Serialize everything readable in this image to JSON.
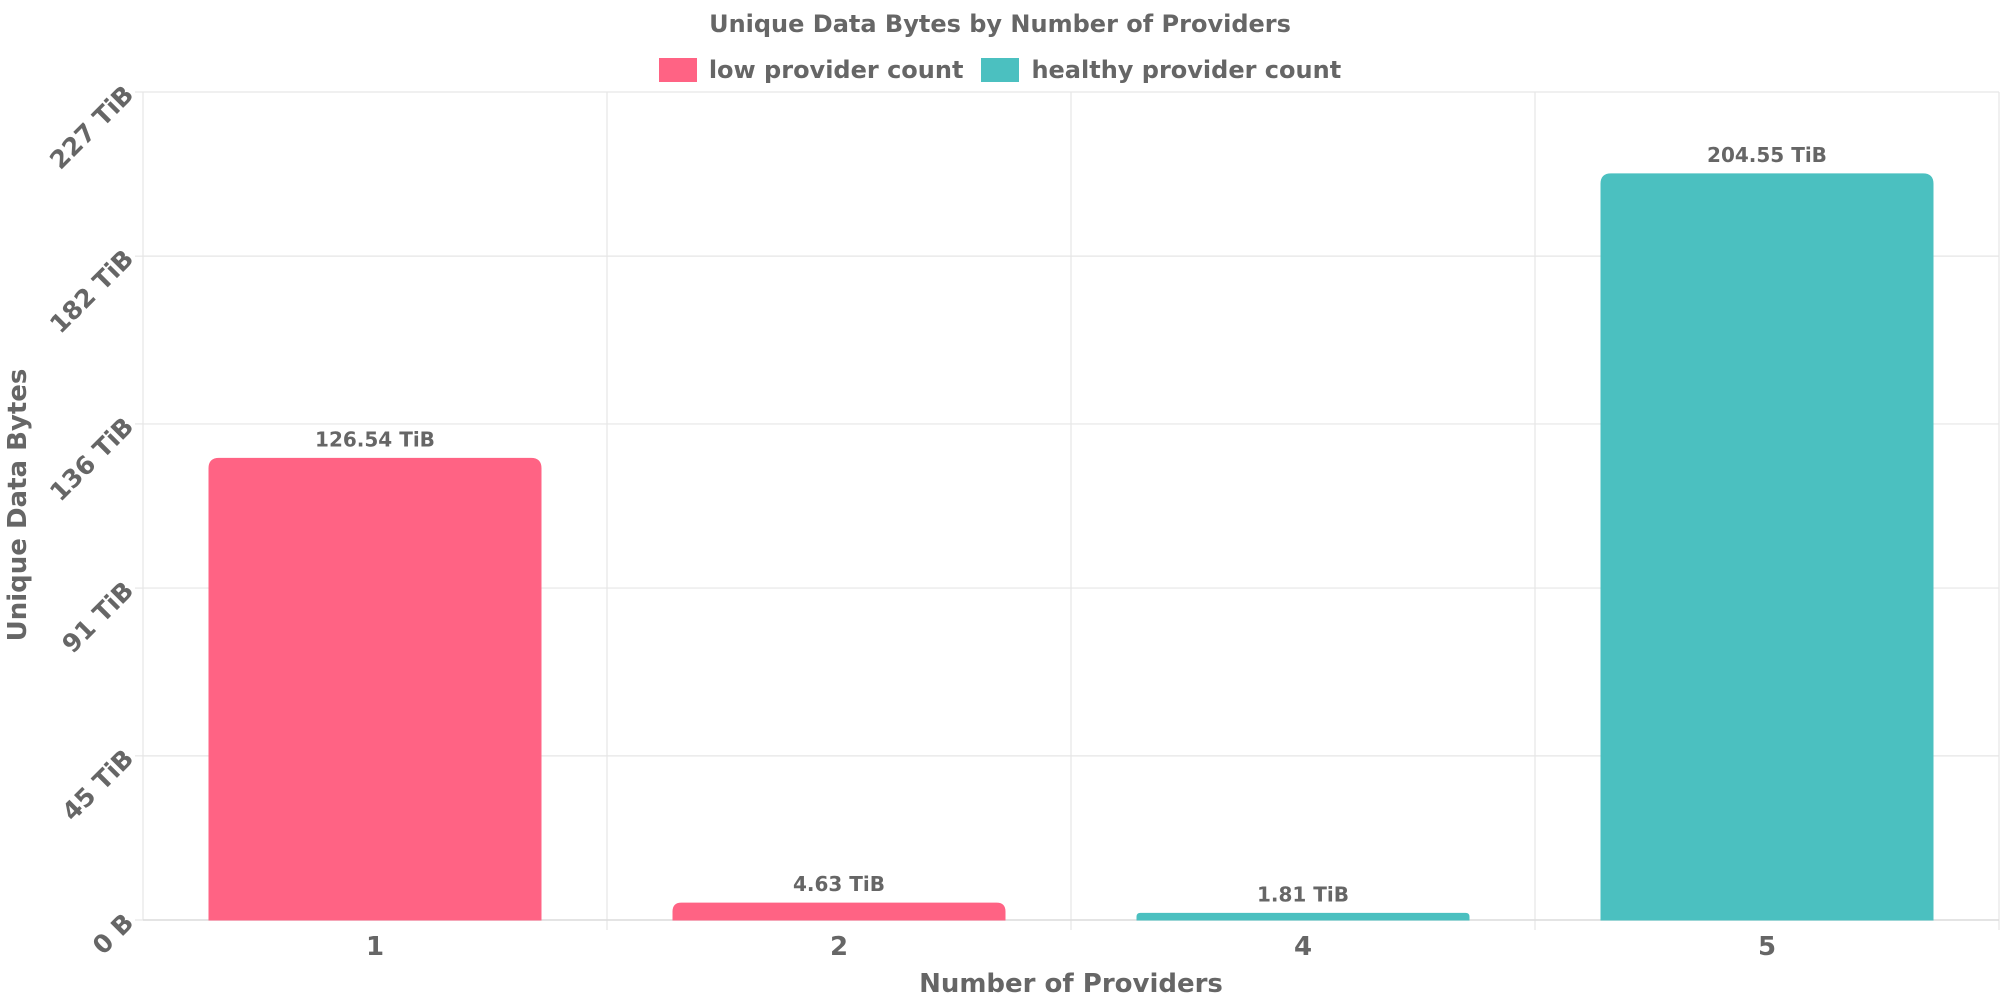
{
  "chart_data": {
    "type": "bar",
    "title": "Unique Data Bytes by Number of Providers",
    "xlabel": "Number of Providers",
    "ylabel": "Unique Data Bytes",
    "categories": [
      "1",
      "2",
      "4",
      "5"
    ],
    "values": [
      126.54,
      4.63,
      1.81,
      204.55
    ],
    "value_labels": [
      "126.54 TiB",
      "4.63 TiB",
      "1.81 TiB",
      "204.55 TiB"
    ],
    "bar_series": [
      "low provider count",
      "low provider count",
      "healthy provider count",
      "healthy provider count"
    ],
    "unit": "TiB",
    "ylim": [
      0,
      227
    ],
    "y_ticks": [
      0,
      45,
      91,
      136,
      182,
      227
    ],
    "y_tick_labels": [
      "0 B",
      "45 TiB",
      "91 TiB",
      "136 TiB",
      "182 TiB",
      "227 TiB"
    ],
    "series": [
      {
        "name": "low provider count",
        "color": "#ff6384"
      },
      {
        "name": "healthy provider count",
        "color": "#4bc0c0"
      }
    ],
    "grid": true,
    "legend_position": "top-center"
  }
}
